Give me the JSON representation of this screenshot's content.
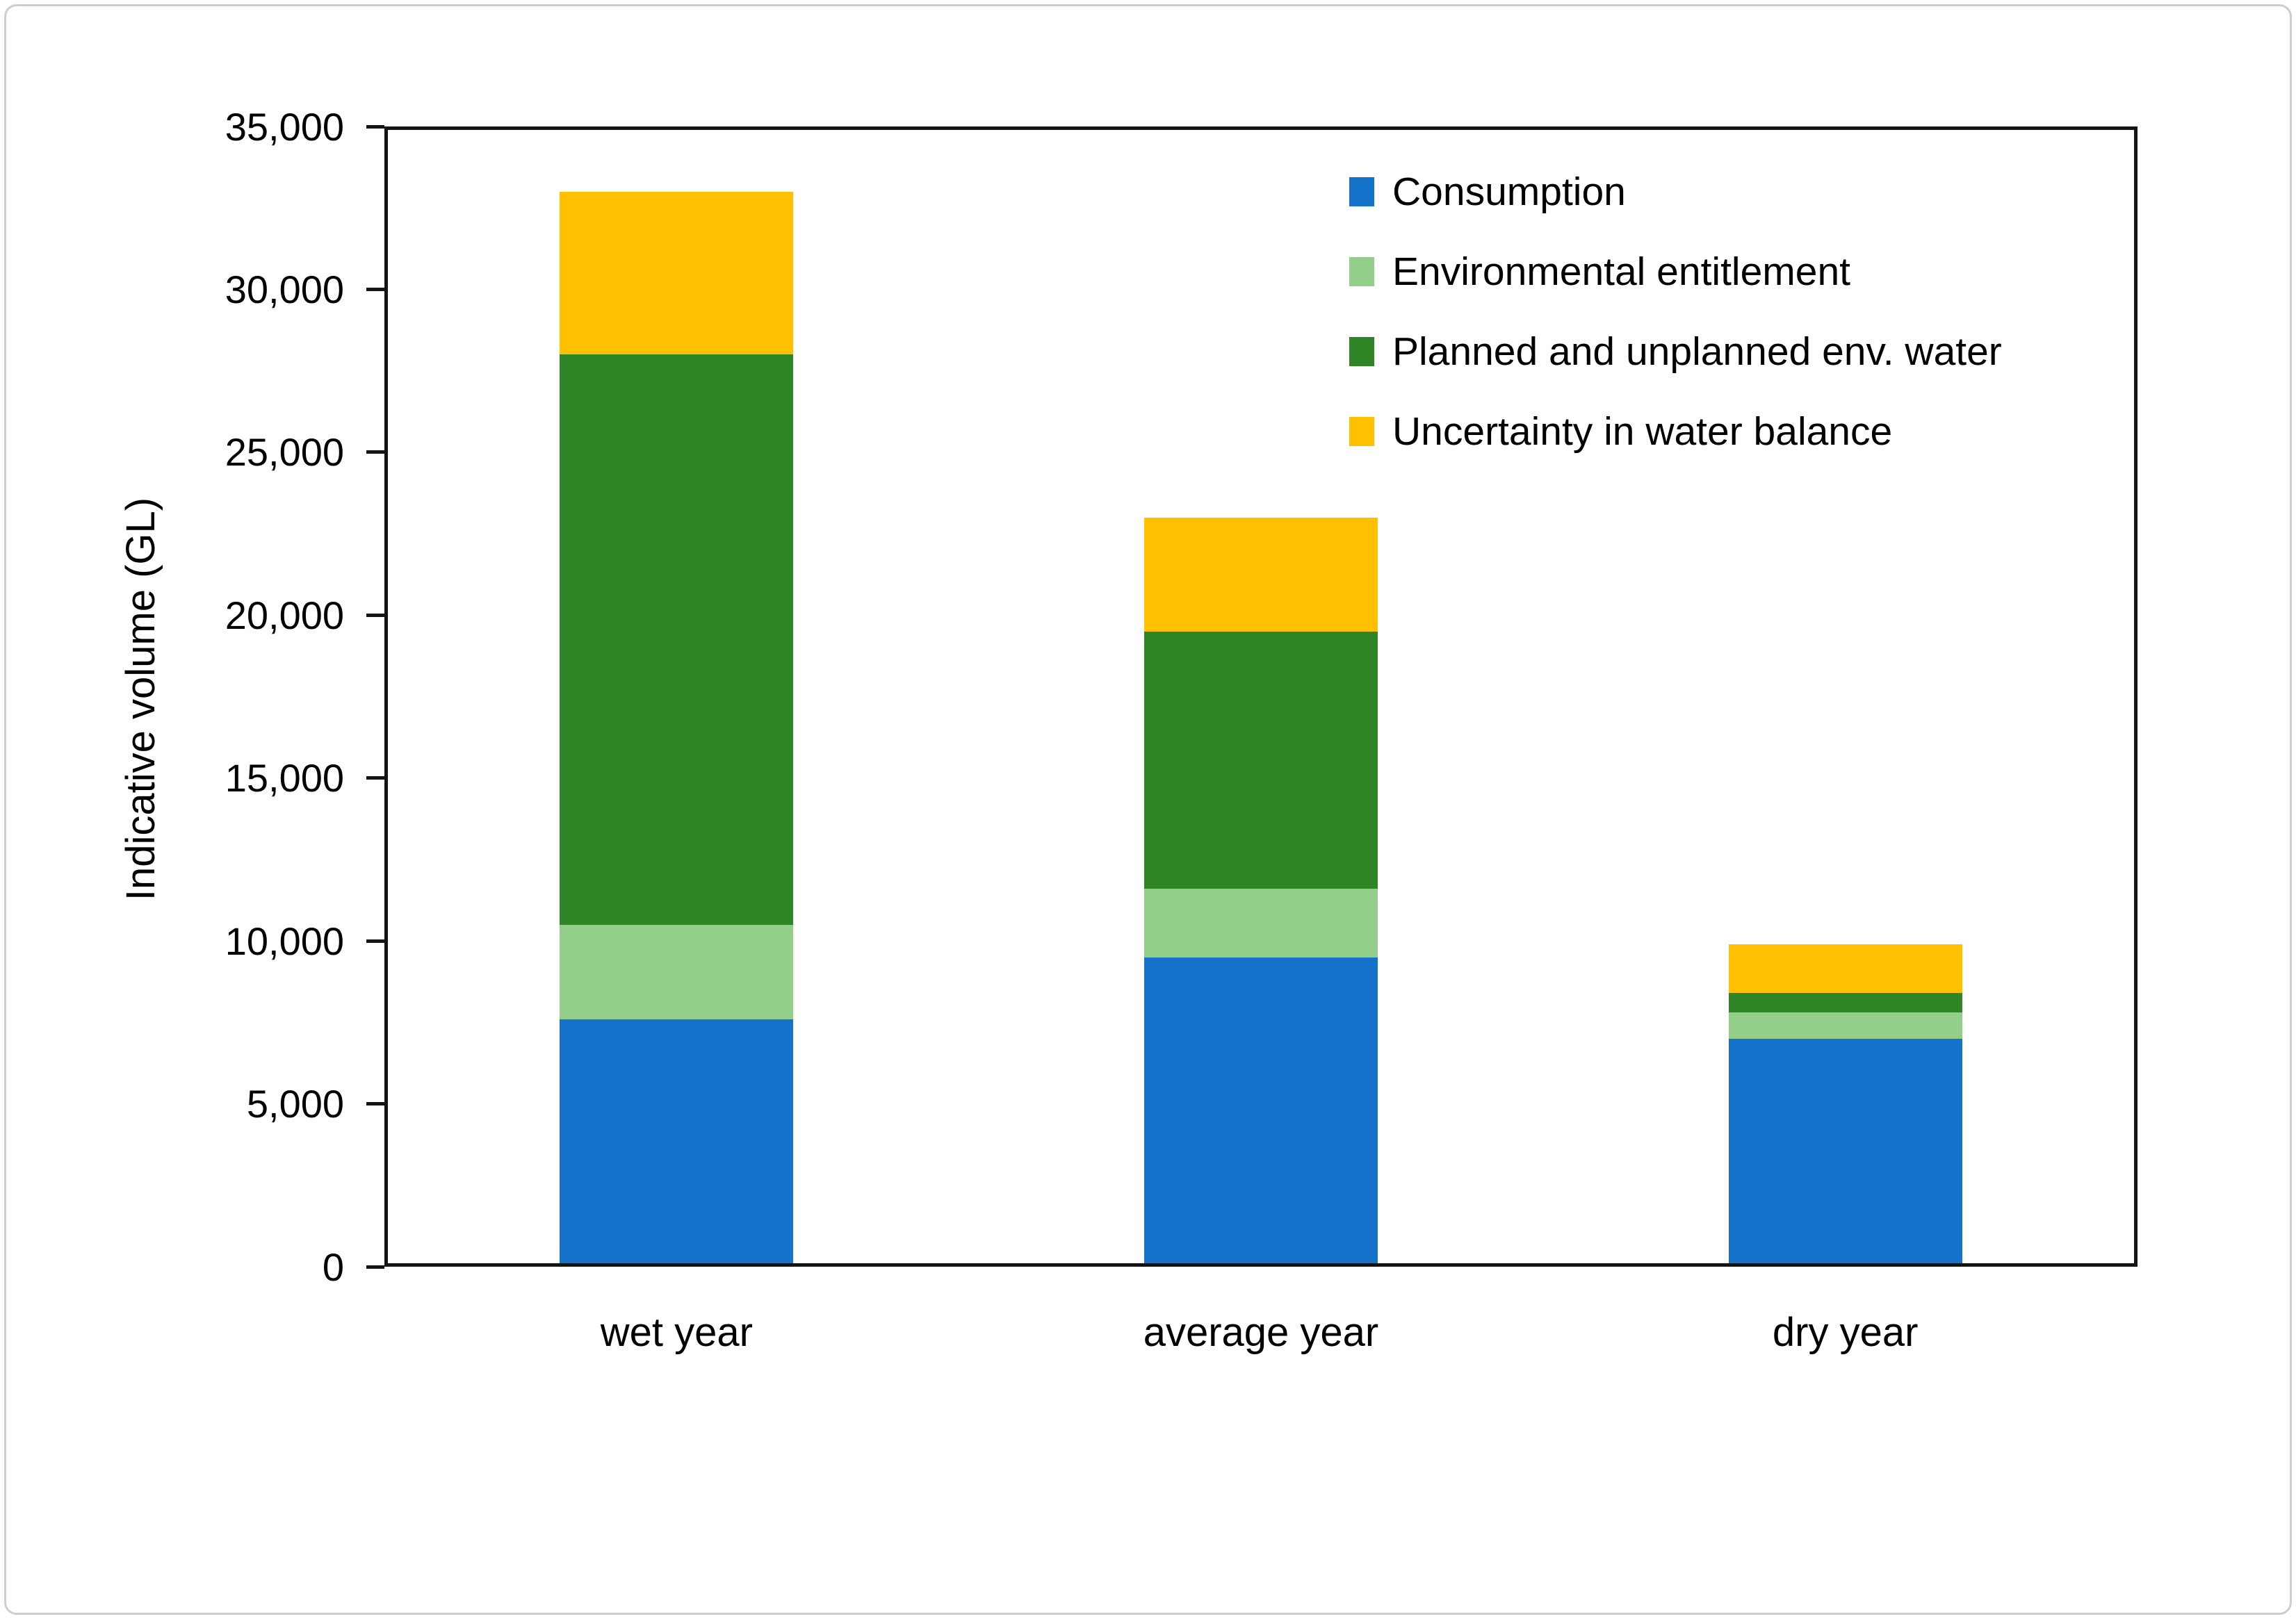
{
  "figure": {
    "background": "#ffffff",
    "card_border_color": "#cbcdd0",
    "axis_color": "#141414"
  },
  "chart_data": {
    "type": "bar",
    "stacked": true,
    "title": "",
    "xlabel": "",
    "ylabel": "Indicative volume (GL)",
    "ylim": [
      0,
      35000
    ],
    "ytick_step": 5000,
    "ytick_labels": [
      "0",
      "5,000",
      "10,000",
      "15,000",
      "20,000",
      "25,000",
      "30,000",
      "35,000"
    ],
    "grid": false,
    "legend_position": "top-right",
    "categories": [
      "wet year",
      "average year",
      "dry year"
    ],
    "series": [
      {
        "name": "Consumption",
        "color": "#1673CB",
        "values": [
          7600,
          9500,
          7000
        ]
      },
      {
        "name": "Environmental entitlement",
        "color": "#93CF8B",
        "values": [
          2900,
          2100,
          800
        ]
      },
      {
        "name": "Planned and unplanned env. water",
        "color": "#2F8426",
        "values": [
          17500,
          7900,
          600
        ]
      },
      {
        "name": "Uncertainty in water balance",
        "color": "#FFC002",
        "values": [
          5000,
          3500,
          1500
        ]
      }
    ],
    "stack_totals": [
      33000,
      23000,
      9900
    ]
  }
}
